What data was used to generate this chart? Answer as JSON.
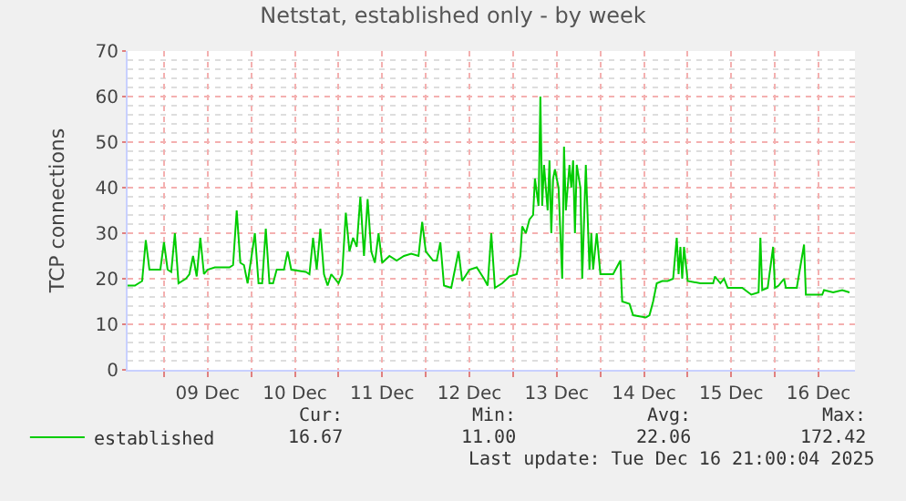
{
  "chart_data": {
    "type": "line",
    "title": "Netstat, established only - by week",
    "ylabel": "TCP connections",
    "x": [
      "2025-12-08T14:00",
      "2025-12-08T16:00",
      "2025-12-08T18:00",
      "2025-12-08T19:00",
      "2025-12-08T20:00",
      "2025-12-08T23:00",
      "2025-12-09T00:00",
      "2025-12-09T01:00",
      "2025-12-09T02:00",
      "2025-12-09T03:00",
      "2025-12-09T04:00",
      "2025-12-09T06:00",
      "2025-12-09T07:00",
      "2025-12-09T08:00",
      "2025-12-09T09:00",
      "2025-12-09T10:00",
      "2025-12-09T11:00",
      "2025-12-09T12:00",
      "2025-12-09T14:00",
      "2025-12-09T18:00",
      "2025-12-09T19:00",
      "2025-12-09T20:00",
      "2025-12-09T21:00",
      "2025-12-09T22:00",
      "2025-12-09T23:00",
      "2025-12-10T01:00",
      "2025-12-10T02:00",
      "2025-12-10T03:00",
      "2025-12-10T04:00",
      "2025-12-10T05:00",
      "2025-12-10T06:00",
      "2025-12-10T07:00",
      "2025-12-10T09:00",
      "2025-12-10T10:00",
      "2025-12-10T11:00",
      "2025-12-10T15:00",
      "2025-12-10T16:00",
      "2025-12-10T17:00",
      "2025-12-10T18:00",
      "2025-12-10T19:00",
      "2025-12-10T20:00",
      "2025-12-10T21:00",
      "2025-12-10T22:00",
      "2025-12-10T23:00",
      "2025-12-11T00:00",
      "2025-12-11T01:00",
      "2025-12-11T02:00",
      "2025-12-11T03:00",
      "2025-12-11T04:00",
      "2025-12-11T05:00",
      "2025-12-11T06:00",
      "2025-12-11T07:00",
      "2025-12-11T08:00",
      "2025-12-11T09:00",
      "2025-12-11T10:00",
      "2025-12-11T11:00",
      "2025-12-11T12:00",
      "2025-12-11T14:00",
      "2025-12-11T16:00",
      "2025-12-11T18:00",
      "2025-12-11T20:00",
      "2025-12-11T22:00",
      "2025-12-11T23:00",
      "2025-12-12T00:00",
      "2025-12-12T02:00",
      "2025-12-12T03:00",
      "2025-12-12T04:00",
      "2025-12-12T05:00",
      "2025-12-12T07:00",
      "2025-12-12T09:00",
      "2025-12-12T10:00",
      "2025-12-12T12:00",
      "2025-12-12T14:00",
      "2025-12-12T16:00",
      "2025-12-12T17:00",
      "2025-12-12T18:00",
      "2025-12-12T19:00",
      "2025-12-12T21:00",
      "2025-12-12T23:00",
      "2025-12-13T01:00",
      "2025-12-13T02:00",
      "2025-12-13T02:30",
      "2025-12-13T03:30",
      "2025-12-13T04:30",
      "2025-12-13T05:30",
      "2025-12-13T06:00",
      "2025-12-13T07:00",
      "2025-12-13T07:30",
      "2025-12-13T08:00",
      "2025-12-13T08:30",
      "2025-12-13T09:30",
      "2025-12-13T10:00",
      "2025-12-13T10:30",
      "2025-12-13T11:00",
      "2025-12-13T11:30",
      "2025-12-13T12:30",
      "2025-12-13T13:30",
      "2025-12-13T14:00",
      "2025-12-13T14:30",
      "2025-12-13T15:30",
      "2025-12-13T16:00",
      "2025-12-13T16:30",
      "2025-12-13T17:00",
      "2025-12-13T17:30",
      "2025-12-13T18:30",
      "2025-12-13T19:00",
      "2025-12-13T20:00",
      "2025-12-13T21:00",
      "2025-12-13T21:30",
      "2025-12-13T22:00",
      "2025-12-13T23:00",
      "2025-12-14T00:00",
      "2025-12-14T03:30",
      "2025-12-14T05:30",
      "2025-12-14T06:00",
      "2025-12-14T08:00",
      "2025-12-14T09:00",
      "2025-12-14T12:30",
      "2025-12-14T13:30",
      "2025-12-14T14:30",
      "2025-12-14T15:30",
      "2025-12-14T17:00",
      "2025-12-14T18:30",
      "2025-12-14T20:00",
      "2025-12-14T21:00",
      "2025-12-14T21:30",
      "2025-12-14T22:00",
      "2025-12-14T22:30",
      "2025-12-14T23:00",
      "2025-12-15T00:00",
      "2025-12-15T03:30",
      "2025-12-15T07:00",
      "2025-12-15T07:30",
      "2025-12-15T09:00",
      "2025-12-15T10:00",
      "2025-12-15T11:00",
      "2025-12-15T15:00",
      "2025-12-15T17:30",
      "2025-12-15T19:30",
      "2025-12-15T20:00",
      "2025-12-15T20:30",
      "2025-12-15T22:00",
      "2025-12-15T23:30",
      "2025-12-16T00:00",
      "2025-12-16T01:00",
      "2025-12-16T02:30",
      "2025-12-16T03:00",
      "2025-12-16T06:00",
      "2025-12-16T08:00",
      "2025-12-16T08:30",
      "2025-12-16T13:00",
      "2025-12-16T13:30",
      "2025-12-16T16:00",
      "2025-12-16T18:30",
      "2025-12-16T20:30"
    ],
    "series": [
      {
        "name": "established",
        "color": "#00cc00",
        "values": [
          18.5,
          18.5,
          19.5,
          28.5,
          22,
          22,
          28,
          22,
          21.5,
          30,
          19,
          20,
          21,
          25,
          20.5,
          29,
          21,
          22,
          22.5,
          22.5,
          23,
          35,
          23.5,
          23,
          19,
          30,
          19,
          19,
          31,
          19,
          19,
          22,
          22,
          26,
          22,
          21.5,
          21,
          29,
          22,
          31,
          21,
          18.5,
          21,
          20,
          19,
          21,
          34.5,
          26,
          29,
          27,
          38,
          25,
          37.5,
          26,
          23.5,
          30,
          23.5,
          25,
          24,
          25,
          25.5,
          25,
          32.5,
          26,
          24,
          24,
          28,
          18.5,
          18,
          26,
          19.5,
          22,
          22.5,
          20,
          18.5,
          30,
          18,
          19,
          20.5,
          21,
          25,
          31.5,
          30,
          33,
          34,
          42,
          36,
          60,
          36,
          45,
          35,
          46,
          30,
          42,
          44,
          40,
          20,
          49,
          35,
          45,
          40,
          46,
          30,
          45,
          40,
          20,
          45,
          22,
          30,
          22,
          30,
          21,
          21,
          24,
          15,
          14.5,
          12,
          11.5,
          12,
          15,
          19,
          19.5,
          19.5,
          20,
          29,
          21,
          27,
          20,
          27,
          19.5,
          19,
          19,
          20.5,
          19,
          20,
          18,
          18,
          16.5,
          17,
          29,
          17.5,
          18,
          27,
          18,
          18.5,
          20,
          18,
          18,
          27.5,
          16.5,
          16.5,
          17.5,
          17,
          17.5,
          17
        ]
      }
    ],
    "xlim": [
      "2025-12-08T14:00",
      "2025-12-16T22:00"
    ],
    "xticks": [
      {
        "value": "2025-12-09T00:00",
        "label": null
      },
      {
        "value": "2025-12-09T12:00",
        "label": "09 Dec"
      },
      {
        "value": "2025-12-10T00:00",
        "label": null
      },
      {
        "value": "2025-12-10T12:00",
        "label": "10 Dec"
      },
      {
        "value": "2025-12-11T00:00",
        "label": null
      },
      {
        "value": "2025-12-11T12:00",
        "label": "11 Dec"
      },
      {
        "value": "2025-12-12T00:00",
        "label": null
      },
      {
        "value": "2025-12-12T12:00",
        "label": "12 Dec"
      },
      {
        "value": "2025-12-13T00:00",
        "label": null
      },
      {
        "value": "2025-12-13T12:00",
        "label": "13 Dec"
      },
      {
        "value": "2025-12-14T00:00",
        "label": null
      },
      {
        "value": "2025-12-14T12:00",
        "label": "14 Dec"
      },
      {
        "value": "2025-12-15T00:00",
        "label": null
      },
      {
        "value": "2025-12-15T12:00",
        "label": "15 Dec"
      },
      {
        "value": "2025-12-16T00:00",
        "label": null
      },
      {
        "value": "2025-12-16T12:00",
        "label": "16 Dec"
      }
    ],
    "ylim": [
      0,
      70
    ],
    "yticks": [
      0,
      10,
      20,
      30,
      40,
      50,
      60,
      70
    ],
    "grid": true,
    "legend": "bottom left",
    "marker": "none",
    "line_style": "solid",
    "annotations": [
      "Cur:",
      "Min:",
      "Avg:",
      "Max:",
      "16.67",
      "11.00",
      "22.06",
      "172.42",
      "Last update: Tue Dec 16 21:00:04 2025"
    ]
  }
}
